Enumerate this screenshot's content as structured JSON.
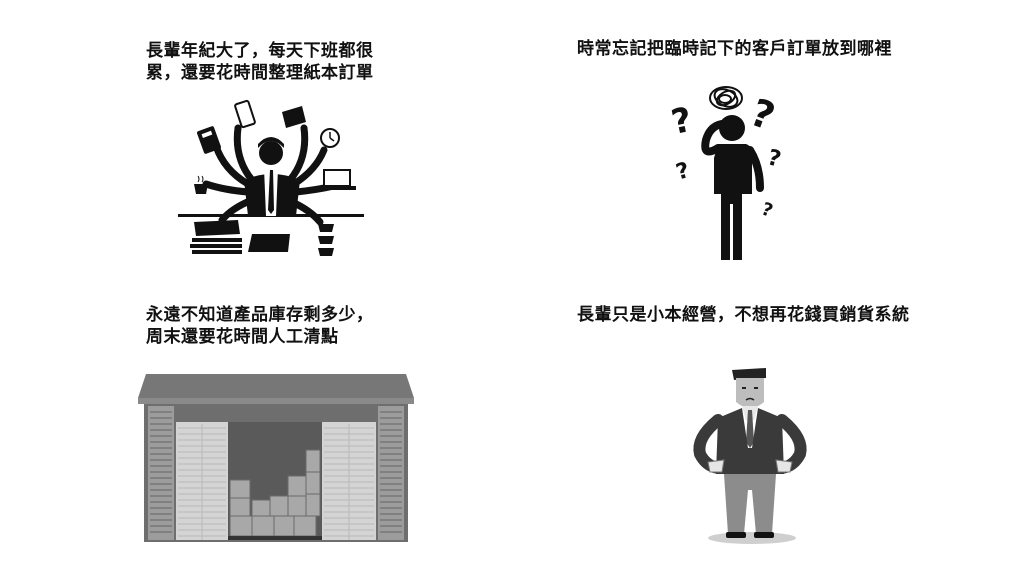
{
  "panels": [
    {
      "id": "busy-elder",
      "caption_lines": [
        "長輩年紀大了，每天下班都很",
        "累，還要花時間整理紙本訂單"
      ],
      "illustration": "multi-armed-busy-worker-icon"
    },
    {
      "id": "lost-orders",
      "caption_lines": [
        "時常忘記把臨時記下的客戶訂單放到哪裡"
      ],
      "illustration": "confused-person-question-marks-icon"
    },
    {
      "id": "inventory",
      "caption_lines": [
        "永遠不知道產品庫存剩多少，",
        "周末還要花時間人工清點"
      ],
      "illustration": "warehouse-boxes-icon"
    },
    {
      "id": "small-business",
      "caption_lines": [
        "長輩只是小本經營，不想再花錢買銷貨系統"
      ],
      "illustration": "man-empty-pockets-icon"
    }
  ]
}
